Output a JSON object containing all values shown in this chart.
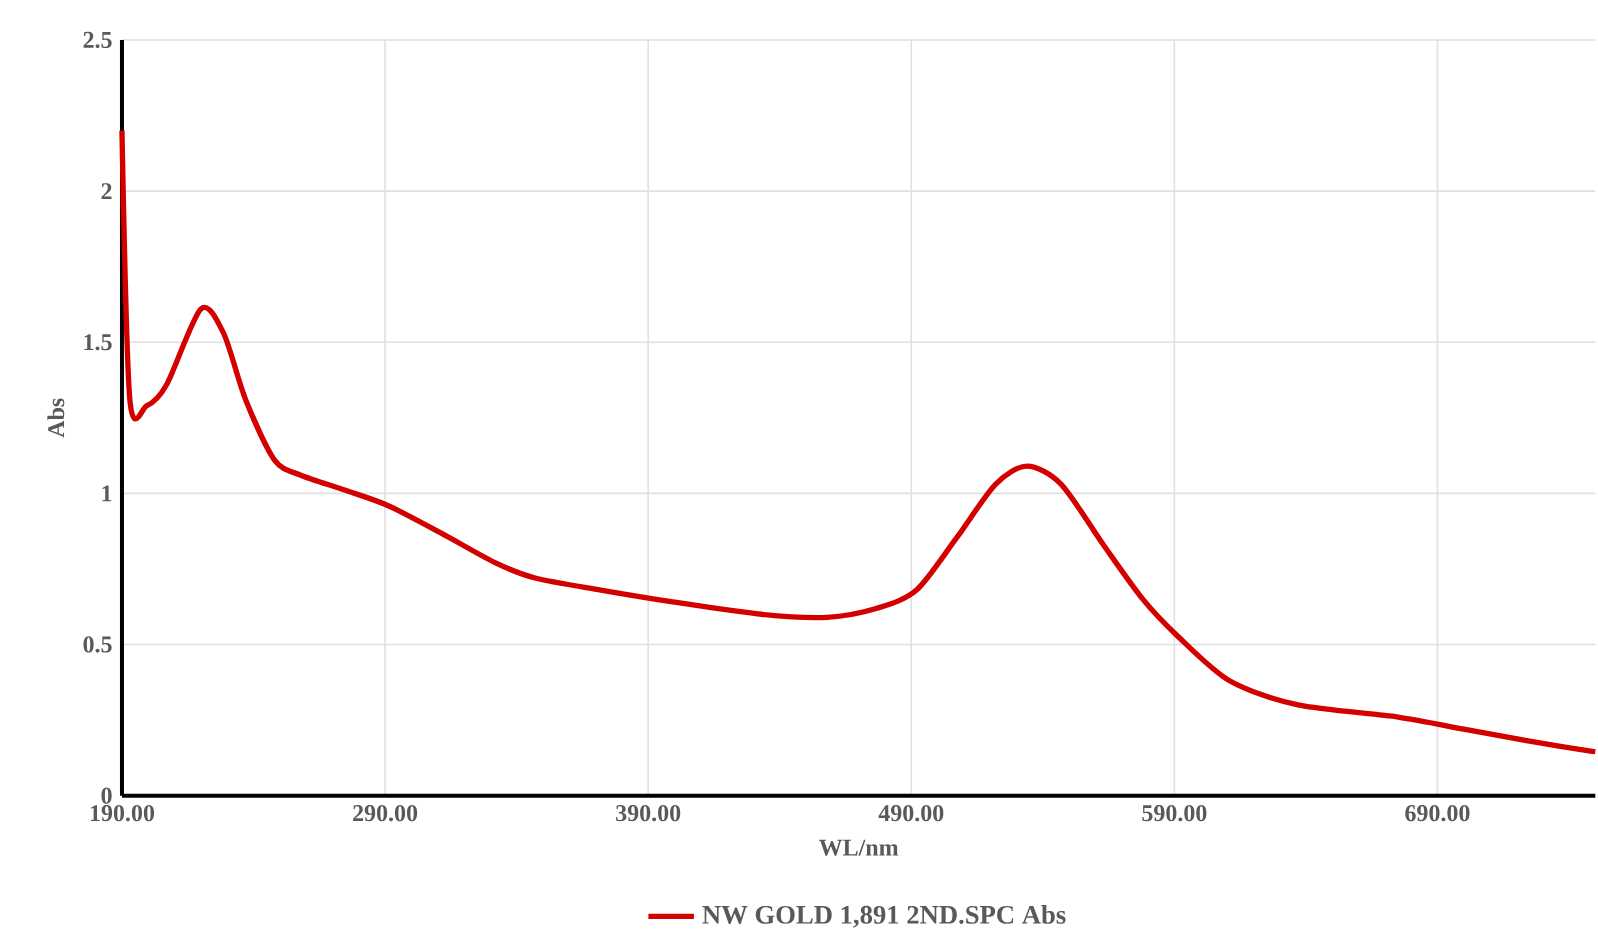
{
  "chart_data": {
    "type": "line",
    "xlabel": "WL/nm",
    "ylabel": "Abs",
    "xlim": [
      190,
      750
    ],
    "ylim": [
      0,
      2.5
    ],
    "xticks": [
      {
        "value": 190,
        "label": "190.00"
      },
      {
        "value": 290,
        "label": "290.00"
      },
      {
        "value": 390,
        "label": "390.00"
      },
      {
        "value": 490,
        "label": "490.00"
      },
      {
        "value": 590,
        "label": "590.00"
      },
      {
        "value": 690,
        "label": "690.00"
      }
    ],
    "yticks": [
      0,
      0.5,
      1,
      1.5,
      2,
      2.5
    ],
    "grid": true,
    "legend": "bottom",
    "marker": "none",
    "line_style": "solid",
    "series": [
      {
        "name": "NW GOLD 1,891 2ND.SPC Abs",
        "color": "#d40000",
        "x": [
          190,
          193,
          199.4,
          207,
          220,
          228.6,
          237,
          248,
          258,
          275,
          291,
          311,
          332,
          347,
          372,
          400,
          433,
          458,
          477,
          492,
          507,
          522,
          534,
          547,
          563,
          578,
          591,
          611,
          637,
          675,
          700,
          725,
          750
        ],
        "values": [
          2.2,
          1.31,
          1.29,
          1.36,
          1.61,
          1.53,
          1.31,
          1.11,
          1.06,
          1.01,
          0.96,
          0.87,
          0.77,
          0.72,
          0.68,
          0.64,
          0.6,
          0.59,
          0.62,
          0.68,
          0.85,
          1.03,
          1.09,
          1.03,
          0.83,
          0.65,
          0.53,
          0.38,
          0.3,
          0.26,
          0.22,
          0.18,
          0.145
        ]
      }
    ]
  }
}
